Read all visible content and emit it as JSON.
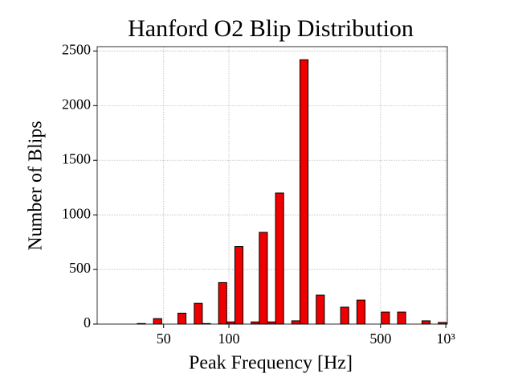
{
  "chart_data": {
    "type": "histogram",
    "title": "Hanford O2 Blip Distribution",
    "x_label": "Peak Frequency [Hz]",
    "y_label": "Number of Blips",
    "x_scale": "log",
    "color": "#ee0000",
    "edgecolor": "#000000",
    "grid": true,
    "bins": [
      37.8,
      41.2,
      44.9,
      49.0,
      53.4,
      58.2,
      63.4,
      69.2,
      75.4,
      82.2,
      89.6,
      97.7,
      106.5,
      116.1,
      126.6,
      138.0,
      150.4,
      164.0,
      178.8,
      194.9,
      212.5,
      231.7,
      252.6,
      275.4,
      300.2,
      327.3,
      356.8,
      389.0,
      424.1,
      462.4,
      504.1,
      549.6,
      599.2,
      653.2,
      712.1,
      776.4,
      846.4,
      922.8,
      1006
    ],
    "values": [
      5,
      0,
      50,
      0,
      0,
      100,
      0,
      190,
      5,
      0,
      380,
      20,
      710,
      0,
      20,
      840,
      20,
      1200,
      0,
      30,
      2420,
      0,
      265,
      0,
      0,
      155,
      0,
      220,
      0,
      0,
      110,
      0,
      110,
      0,
      0,
      30,
      0,
      15
    ],
    "xlim": [
      24.7,
      1016
    ],
    "xticks": [
      50,
      100,
      500,
      {
        "value": 1000,
        "label": "10³"
      }
    ],
    "ylim": [
      0,
      2540
    ],
    "yticks": [
      0,
      500,
      1000,
      1500,
      2000,
      2500
    ]
  }
}
